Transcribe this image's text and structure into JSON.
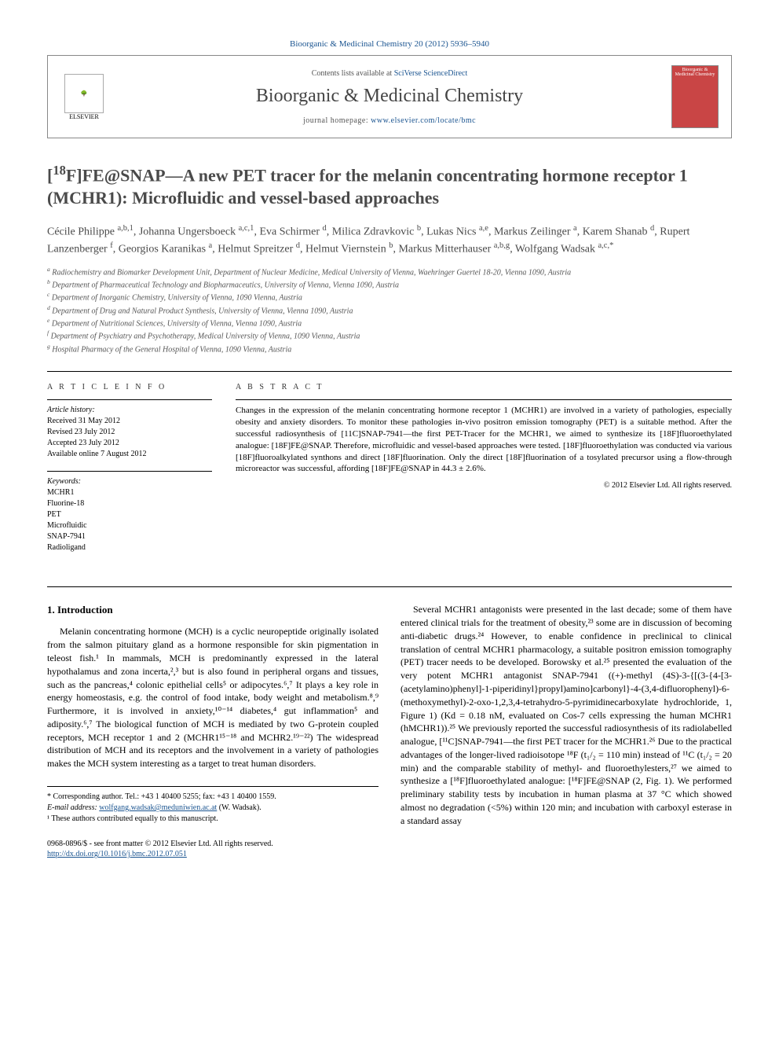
{
  "citation": "Bioorganic & Medicinal Chemistry 20 (2012) 5936–5940",
  "header": {
    "contents_prefix": "Contents lists available at ",
    "contents_link": "SciVerse ScienceDirect",
    "journal_name": "Bioorganic & Medicinal Chemistry",
    "homepage_prefix": "journal homepage: ",
    "homepage_url": "www.elsevier.com/locate/bmc",
    "publisher": "ELSEVIER",
    "cover_text": "Bioorganic & Medicinal Chemistry"
  },
  "title": "[18F]FE@SNAP—A new PET tracer for the melanin concentrating hormone receptor 1 (MCHR1): Microfluidic and vessel-based approaches",
  "authors_html": "Cécile Philippe <sup>a,b,1</sup>, Johanna Ungersboeck <sup>a,c,1</sup>, Eva Schirmer <sup>d</sup>, Milica Zdravkovic <sup>b</sup>, Lukas Nics <sup>a,e</sup>, Markus Zeilinger <sup>a</sup>, Karem Shanab <sup>d</sup>, Rupert Lanzenberger <sup>f</sup>, Georgios Karanikas <sup>a</sup>, Helmut Spreitzer <sup>d</sup>, Helmut Viernstein <sup>b</sup>, Markus Mitterhauser <sup>a,b,g</sup>, Wolfgang Wadsak <sup>a,c,*</sup>",
  "affiliations": [
    "a Radiochemistry and Biomarker Development Unit, Department of Nuclear Medicine, Medical University of Vienna, Waehringer Guertel 18-20, Vienna 1090, Austria",
    "b Department of Pharmaceutical Technology and Biopharmaceutics, University of Vienna, Vienna 1090, Austria",
    "c Department of Inorganic Chemistry, University of Vienna, 1090 Vienna, Austria",
    "d Department of Drug and Natural Product Synthesis, University of Vienna, Vienna 1090, Austria",
    "e Department of Nutritional Sciences, University of Vienna, Vienna 1090, Austria",
    "f Department of Psychiatry and Psychotherapy, Medical University of Vienna, 1090 Vienna, Austria",
    "g Hospital Pharmacy of the General Hospital of Vienna, 1090 Vienna, Austria"
  ],
  "article_info": {
    "heading": "A R T I C L E   I N F O",
    "history_label": "Article history:",
    "history": [
      "Received 31 May 2012",
      "Revised 23 July 2012",
      "Accepted 23 July 2012",
      "Available online 7 August 2012"
    ],
    "keywords_label": "Keywords:",
    "keywords": [
      "MCHR1",
      "Fluorine-18",
      "PET",
      "Microfluidic",
      "SNAP-7941",
      "Radioligand"
    ]
  },
  "abstract": {
    "heading": "A B S T R A C T",
    "text": "Changes in the expression of the melanin concentrating hormone receptor 1 (MCHR1) are involved in a variety of pathologies, especially obesity and anxiety disorders. To monitor these pathologies in-vivo positron emission tomography (PET) is a suitable method. After the successful radiosynthesis of [11C]SNAP-7941—the first PET-Tracer for the MCHR1, we aimed to synthesize its [18F]fluoroethylated analogue: [18F]FE@SNAP. Therefore, microfluidic and vessel-based approaches were tested. [18F]fluoroethylation was conducted via various [18F]fluoroalkylated synthons and direct [18F]fluorination. Only the direct [18F]fluorination of a tosylated precursor using a flow-through microreactor was successful, affording [18F]FE@SNAP in 44.3 ± 2.6%.",
    "copyright": "© 2012 Elsevier Ltd. All rights reserved."
  },
  "section1": {
    "heading": "1. Introduction",
    "col1": "Melanin concentrating hormone (MCH) is a cyclic neuropeptide originally isolated from the salmon pituitary gland as a hormone responsible for skin pigmentation in teleost fish.¹ In mammals, MCH is predominantly expressed in the lateral hypothalamus and zona incerta,²,³ but is also found in peripheral organs and tissues, such as the pancreas,⁴ colonic epithelial cells⁵ or adipocytes.⁶,⁷ It plays a key role in energy homeostasis, e.g. the control of food intake, body weight and metabolism.⁸,⁹ Furthermore, it is involved in anxiety,¹⁰⁻¹⁴ diabetes,⁴ gut inflammation⁵ and adiposity.⁶,⁷ The biological function of MCH is mediated by two G-protein coupled receptors, MCH receptor 1 and 2 (MCHR1¹⁵⁻¹⁸ and MCHR2.¹⁹⁻²²) The widespread distribution of MCH and its receptors and the involvement in a variety of pathologies makes the MCH system interesting as a target to treat human disorders.",
    "col2": "Several MCHR1 antagonists were presented in the last decade; some of them have entered clinical trials for the treatment of obesity,²³ some are in discussion of becoming anti-diabetic drugs.²⁴ However, to enable confidence in preclinical to clinical translation of central MCHR1 pharmacology, a suitable positron emission tomography (PET) tracer needs to be developed. Borowsky et al.²⁵ presented the evaluation of the very potent MCHR1 antagonist SNAP-7941 ((+)-methyl (4S)-3-{[(3-{4-[3-(acetylamino)phenyl]-1-piperidinyl}propyl)amino]carbonyl}-4-(3,4-difluorophenyl)-6-(methoxymethyl)-2-oxo-1,2,3,4-tetrahydro-5-pyrimidinecarboxylate hydrochloride, 1, Figure 1) (Kd = 0.18 nM, evaluated on Cos-7 cells expressing the human MCHR1 (hMCHR1)).²⁵ We previously reported the successful radiosynthesis of its radiolabelled analogue, [¹¹C]SNAP-7941—the first PET tracer for the MCHR1.²⁶ Due to the practical advantages of the longer-lived radioisotope ¹⁸F (t₁/₂ = 110 min) instead of ¹¹C (t₁/₂ = 20 min) and the comparable stability of methyl- and fluoroethylesters,²⁷ we aimed to synthesize a [¹⁸F]fluoroethylated analogue: [¹⁸F]FE@SNAP (2, Fig. 1). We performed preliminary stability tests by incubation in human plasma at 37 °C which showed almost no degradation (<5%) within 120 min; and incubation with carboxyl esterase in a standard assay"
  },
  "footer": {
    "corresponding": "* Corresponding author. Tel.: +43 1 40400 5255; fax: +43 1 40400 1559.",
    "email_label": "E-mail address: ",
    "email": "wolfgang.wadsak@meduniwien.ac.at",
    "email_suffix": " (W. Wadsak).",
    "contrib": "¹ These authors contributed equally to this manuscript.",
    "issn": "0968-0896/$ - see front matter © 2012 Elsevier Ltd. All rights reserved.",
    "doi": "http://dx.doi.org/10.1016/j.bmc.2012.07.051"
  },
  "colors": {
    "link": "#1a5490",
    "text": "#000000",
    "heading": "#4a4a4a",
    "cover_bg": "#c94545"
  }
}
